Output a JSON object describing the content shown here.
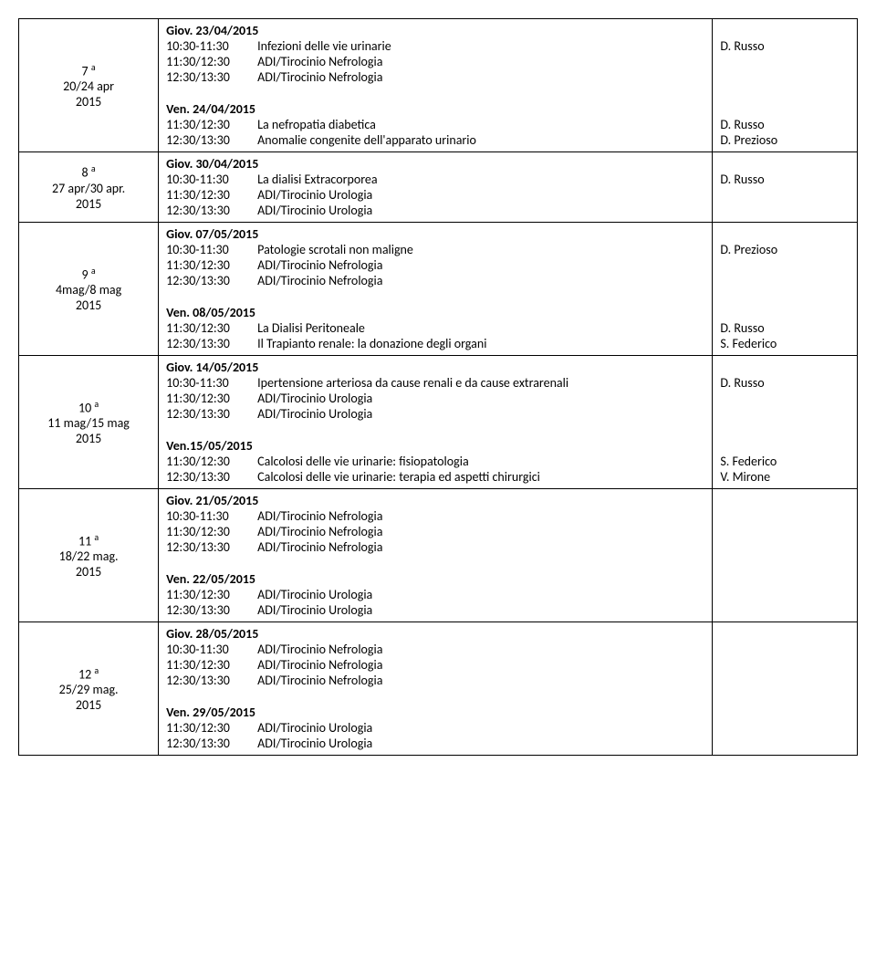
{
  "labels": {
    "sup": "a"
  },
  "weeks": [
    {
      "num": "7",
      "range": "20/24 apr",
      "year": "2015",
      "blocks": [
        {
          "header": "Giov. 23/04/2015",
          "rows": [
            {
              "time": "10:30-11:30",
              "desc": "Infezioni delle vie urinarie",
              "instr": "D. Russo"
            },
            {
              "time": "11:30/12:30",
              "desc": "ADI/Tirocinio Nefrologia",
              "instr": ""
            },
            {
              "time": "12:30/13:30",
              "desc": "ADI/Tirocinio Nefrologia",
              "instr": ""
            }
          ]
        },
        {
          "header": "Ven. 24/04/2015",
          "rows": [
            {
              "time": "11:30/12:30",
              "desc": "La nefropatia diabetica",
              "instr": "D. Russo"
            },
            {
              "time": "12:30/13:30",
              "desc": "Anomalie congenite dell'apparato urinario",
              "instr": "D. Prezioso"
            }
          ]
        }
      ]
    },
    {
      "num": "8",
      "range": "27 apr/30 apr.",
      "year": "2015",
      "blocks": [
        {
          "header": "Giov. 30/04/2015",
          "rows": [
            {
              "time": "10:30-11:30",
              "desc": "La dialisi Extracorporea",
              "instr": "D. Russo"
            },
            {
              "time": "11:30/12:30",
              "desc": "ADI/Tirocinio Urologia",
              "instr": ""
            },
            {
              "time": "12:30/13:30",
              "desc": "ADI/Tirocinio Urologia",
              "instr": ""
            }
          ]
        }
      ]
    },
    {
      "num": "9",
      "range": "4mag/8 mag",
      "year": "2015",
      "blocks": [
        {
          "header": "Giov. 07/05/2015",
          "rows": [
            {
              "time": "10:30-11:30",
              "desc": "Patologie scrotali non maligne",
              "instr": "D. Prezioso"
            },
            {
              "time": "11:30/12:30",
              "desc": "ADI/Tirocinio Nefrologia",
              "instr": ""
            },
            {
              "time": "12:30/13:30",
              "desc": "ADI/Tirocinio Nefrologia",
              "instr": ""
            }
          ]
        },
        {
          "header": "Ven. 08/05/2015",
          "rows": [
            {
              "time": "11:30/12:30",
              "desc": "La Dialisi Peritoneale",
              "instr": "D. Russo"
            },
            {
              "time": "12:30/13:30",
              "desc": "Il Trapianto renale: la donazione degli organi",
              "instr": "S. Federico"
            }
          ]
        }
      ]
    },
    {
      "num": "10",
      "range": "11 mag/15 mag",
      "year": "2015",
      "blocks": [
        {
          "header": "Giov. 14/05/2015",
          "rows": [
            {
              "time": "10:30-11:30",
              "desc": "Ipertensione arteriosa da cause renali e da cause extrarenali",
              "instr": "D. Russo"
            },
            {
              "time": "11:30/12:30",
              "desc": "ADI/Tirocinio Urologia",
              "instr": ""
            },
            {
              "time": "12:30/13:30",
              "desc": "ADI/Tirocinio Urologia",
              "instr": ""
            }
          ]
        },
        {
          "header": "Ven.15/05/2015",
          "rows": [
            {
              "time": "11:30/12:30",
              "desc": "Calcolosi delle vie urinarie: fisiopatologia",
              "instr": "S. Federico"
            },
            {
              "time": "12:30/13:30",
              "desc": "Calcolosi delle vie urinarie: terapia ed aspetti chirurgici",
              "instr": "V. Mirone"
            }
          ]
        }
      ]
    },
    {
      "num": "11",
      "range": "18/22 mag.",
      "year": "2015",
      "blocks": [
        {
          "header": "Giov. 21/05/2015",
          "rows": [
            {
              "time": "10:30-11:30",
              "desc": "ADI/Tirocinio  Nefrologia",
              "instr": ""
            },
            {
              "time": "11:30/12:30",
              "desc": "ADI/Tirocinio  Nefrologia",
              "instr": ""
            },
            {
              "time": "12:30/13:30",
              "desc": "ADI/Tirocinio  Nefrologia",
              "instr": ""
            }
          ]
        },
        {
          "header": "Ven. 22/05/2015",
          "rows": [
            {
              "time": "11:30/12:30",
              "desc": "ADI/Tirocinio Urologia",
              "instr": ""
            },
            {
              "time": "12:30/13:30",
              "desc": "ADI/Tirocinio Urologia",
              "instr": ""
            }
          ]
        }
      ]
    },
    {
      "num": "12",
      "range": "25/29 mag.",
      "year": "2015",
      "blocks": [
        {
          "header": "Giov. 28/05/2015",
          "rows": [
            {
              "time": "10:30-11:30",
              "desc": "ADI/Tirocinio Nefrologia",
              "instr": ""
            },
            {
              "time": "11:30/12:30",
              "desc": "ADI/Tirocinio Nefrologia",
              "instr": ""
            },
            {
              "time": "12:30/13:30",
              "desc": "ADI/Tirocinio Nefrologia",
              "instr": ""
            }
          ]
        },
        {
          "header": "Ven. 29/05/2015",
          "rows": [
            {
              "time": "11:30/12:30",
              "desc": "ADI/Tirocinio Urologia",
              "instr": ""
            },
            {
              "time": "12:30/13:30",
              "desc": "ADI/Tirocinio Urologia",
              "instr": ""
            }
          ]
        }
      ]
    }
  ]
}
